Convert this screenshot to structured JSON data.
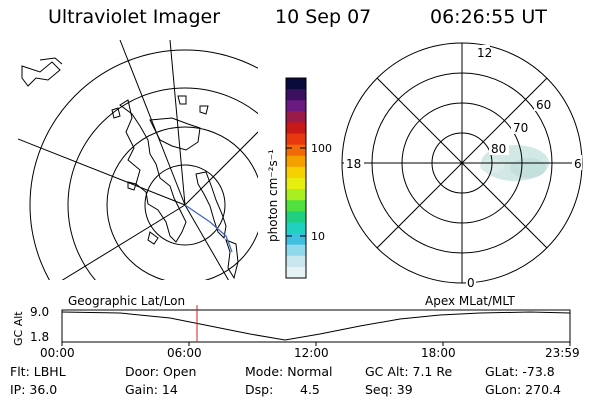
{
  "header": {
    "instrument": "Ultraviolet Imager",
    "date": "10 Sep 07",
    "time": "06:26:55 UT"
  },
  "colorbar": {
    "unit_label": "photon cm⁻²s⁻¹",
    "ticks": [
      "100",
      "10"
    ],
    "colors": [
      "#0a0a3a",
      "#3b1060",
      "#6a1a80",
      "#9a1a4a",
      "#c81818",
      "#e83810",
      "#f06a08",
      "#f6a000",
      "#f6d000",
      "#e6ee10",
      "#a8ee20",
      "#50e040",
      "#20d080",
      "#20d0c0",
      "#40c0e0",
      "#90d8ec",
      "#c8e6ee",
      "#e6f2f4"
    ]
  },
  "polar_plot": {
    "mlt_labels": {
      "top": "12",
      "left": "18",
      "right": "6",
      "bottom": "0"
    },
    "lat_labels": [
      "60",
      "70",
      "80"
    ],
    "aurora_color": "#cfe6e2"
  },
  "timeline": {
    "left_label": "Geographic Lat/Lon",
    "right_label": "Apex MLat/MLT",
    "axis_title": "GC Alt",
    "y_top": "9.0",
    "y_bottom": "1.8",
    "x_ticks": [
      "00:00",
      "06:00",
      "12:00",
      "18:00",
      "23:59"
    ],
    "marker_color": "#d02020"
  },
  "status": {
    "filter": "Flt: LBHL",
    "ip": "IP: 36.0",
    "door": "Door: Open",
    "gain": "Gain: 14",
    "mode": "Mode: Normal",
    "dsp_label": "Dsp:",
    "dsp_value": "4.5",
    "gc_alt": "GC Alt: 7.1 Re",
    "seq": "Seq: 39",
    "glat": "GLat: -73.8",
    "glon": "GLon: 270.4"
  }
}
